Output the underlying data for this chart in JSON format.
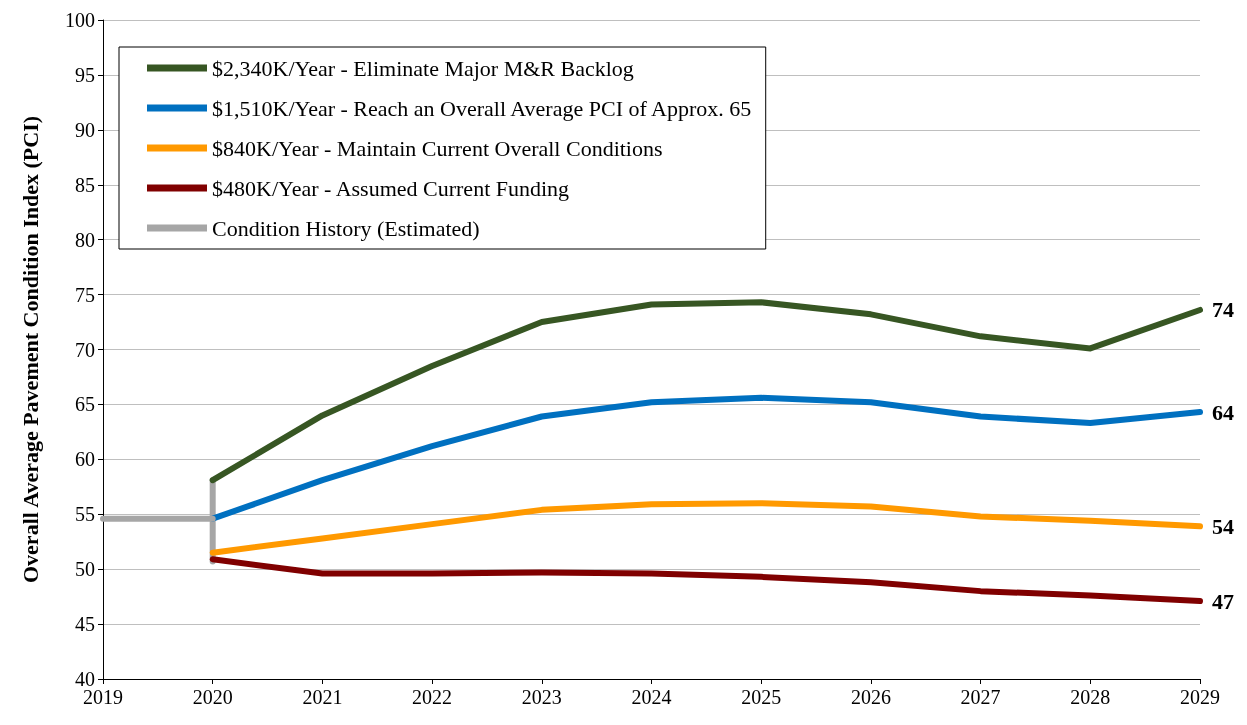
{
  "chart_data": {
    "type": "line",
    "ylabel": "Overall Average Pavement Condition Index (PCI)",
    "x": [
      2020,
      2021,
      2022,
      2023,
      2024,
      2025,
      2026,
      2027,
      2028,
      2029
    ],
    "xlim": [
      2019,
      2029
    ],
    "xticks": [
      2019,
      2020,
      2021,
      2022,
      2023,
      2024,
      2025,
      2026,
      2027,
      2028,
      2029
    ],
    "ylim": [
      40,
      100
    ],
    "yticks": [
      40,
      45,
      50,
      55,
      60,
      65,
      70,
      75,
      80,
      85,
      90,
      95,
      100
    ],
    "grid": "y",
    "legend": "top left",
    "marker": "none",
    "line_style": "solid",
    "series": [
      {
        "name": "$2,340K/Year - Eliminate Major M&R Backlog",
        "color": "#375623",
        "values": [
          58.1,
          64.0,
          68.5,
          72.5,
          74.1,
          74.3,
          73.2,
          71.2,
          70.1,
          73.6
        ],
        "value_labels": [
          null,
          null,
          null,
          null,
          null,
          null,
          null,
          null,
          null,
          "74"
        ]
      },
      {
        "name": "$1,510K/Year - Reach an Overall Average PCI of Approx. 65",
        "color": "#0070c0",
        "values": [
          54.6,
          58.1,
          61.2,
          63.9,
          65.2,
          65.6,
          65.2,
          63.9,
          63.3,
          64.3
        ],
        "value_labels": [
          null,
          null,
          null,
          null,
          null,
          null,
          null,
          null,
          null,
          "64"
        ]
      },
      {
        "name": "$840K/Year - Maintain Current Overall Conditions",
        "color": "#ff9900",
        "values": [
          51.5,
          52.8,
          54.1,
          55.4,
          55.9,
          56.0,
          55.7,
          54.8,
          54.4,
          53.9
        ],
        "value_labels": [
          null,
          null,
          null,
          null,
          null,
          null,
          null,
          null,
          null,
          "54"
        ]
      },
      {
        "name": "$480K/Year - Assumed Current Funding",
        "color": "#800000",
        "values": [
          50.9,
          49.6,
          49.6,
          49.7,
          49.6,
          49.3,
          48.8,
          48.0,
          47.6,
          47.1
        ],
        "value_labels": [
          null,
          null,
          null,
          null,
          null,
          null,
          null,
          null,
          null,
          "47"
        ]
      },
      {
        "name": "Condition History (Estimated)",
        "color": "#a6a6a6",
        "x": [
          2019,
          2020
        ],
        "values": [
          54.6,
          54.6
        ],
        "errors": [
          null,
          [
            50.7,
            58.1
          ]
        ]
      }
    ]
  }
}
